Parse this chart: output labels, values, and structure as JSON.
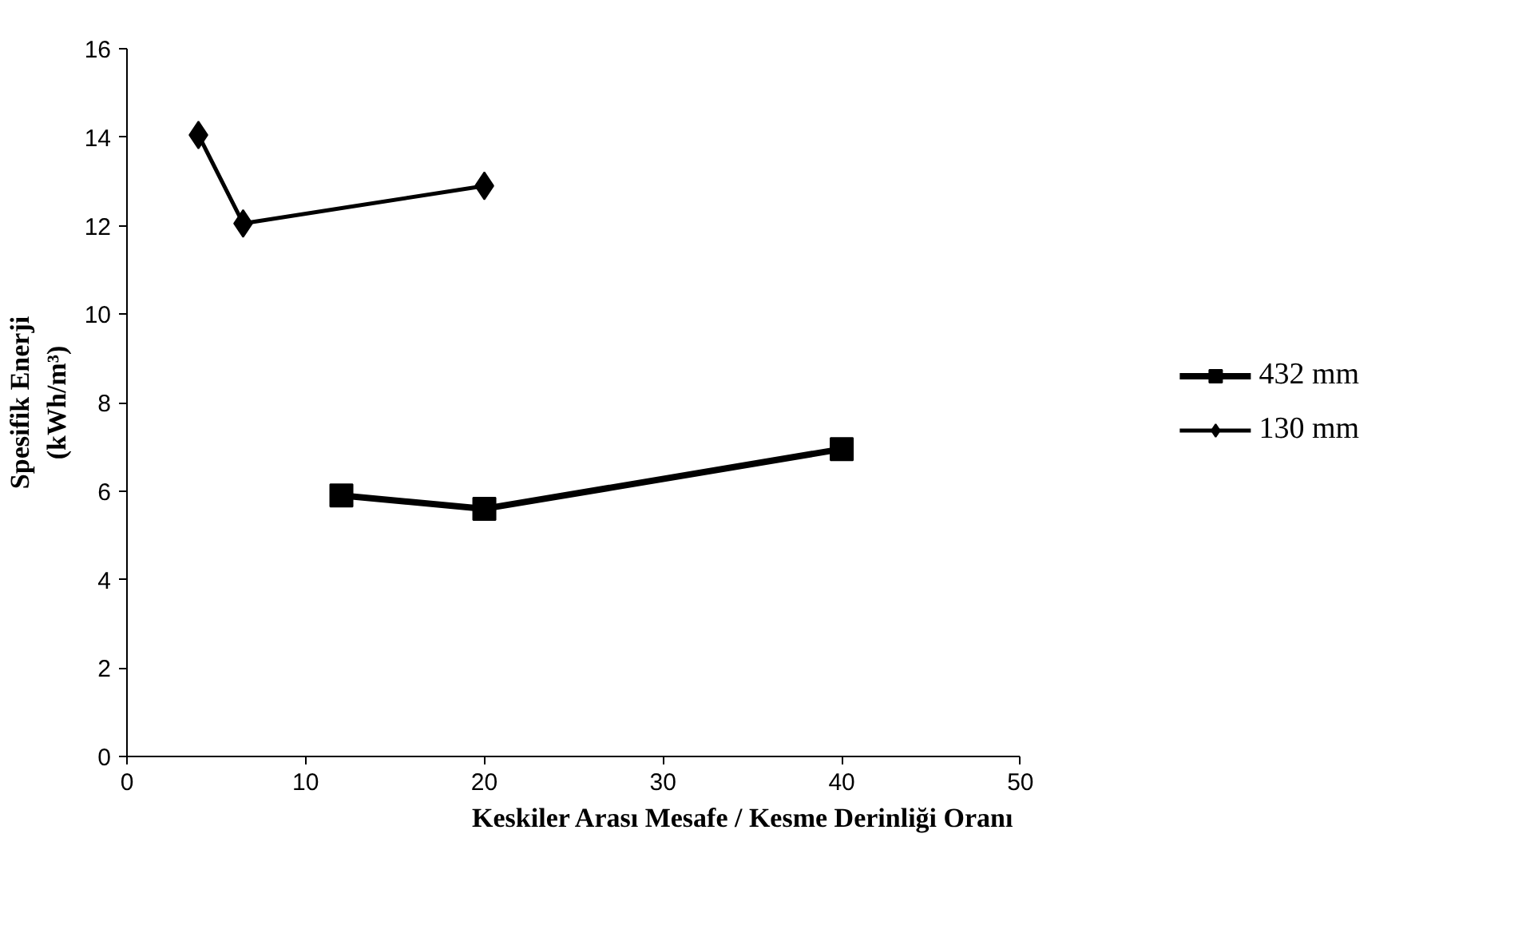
{
  "chart_data": {
    "type": "line",
    "xlabel": "Keskiler Arası Mesafe / Kesme Derinliği Oranı",
    "ylabel": "Spesifik Enerji\n(kWh/m³)",
    "xlim": [
      0,
      50
    ],
    "xticks": [
      0,
      10,
      20,
      30,
      40,
      50
    ],
    "ylim": [
      0,
      16
    ],
    "yticks": [
      0,
      2,
      4,
      6,
      8,
      10,
      12,
      14,
      16
    ],
    "grid": false,
    "legend": "right",
    "line_style": "solid",
    "series": [
      {
        "name": "432 mm",
        "color": "#000000",
        "marker": "square",
        "x": [
          12,
          20,
          40
        ],
        "values": [
          5.9,
          5.6,
          6.95
        ]
      },
      {
        "name": "130 mm",
        "color": "#000000",
        "marker": "diamond",
        "x": [
          4,
          6.5,
          20
        ],
        "values": [
          14.05,
          12.05,
          12.9
        ]
      }
    ]
  }
}
